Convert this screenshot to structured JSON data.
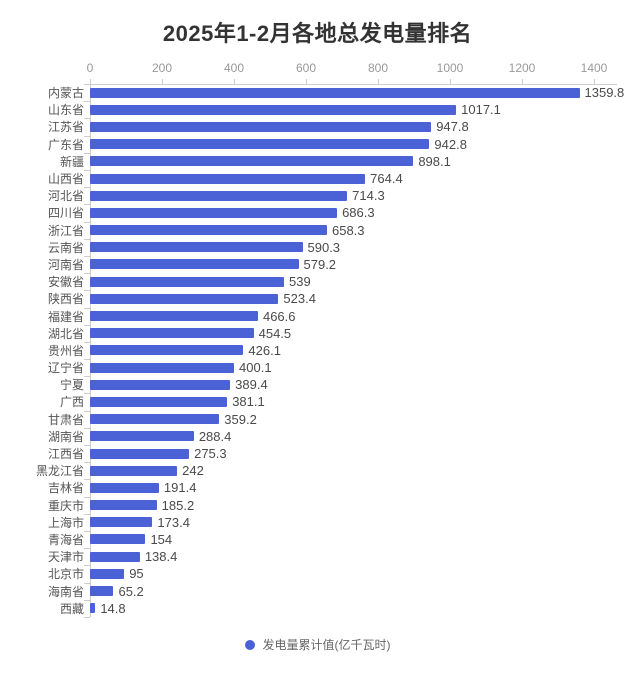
{
  "chart_data": {
    "type": "bar",
    "orientation": "horizontal",
    "title": "2025年1-2月各地总发电量排名",
    "series_name": "发电量累计值(亿千瓦时)",
    "categories": [
      "内蒙古",
      "山东省",
      "江苏省",
      "广东省",
      "新疆",
      "山西省",
      "河北省",
      "四川省",
      "浙江省",
      "云南省",
      "河南省",
      "安徽省",
      "陕西省",
      "福建省",
      "湖北省",
      "贵州省",
      "辽宁省",
      "宁夏",
      "广西",
      "甘肃省",
      "湖南省",
      "江西省",
      "黑龙江省",
      "吉林省",
      "重庆市",
      "上海市",
      "青海省",
      "天津市",
      "北京市",
      "海南省",
      "西藏"
    ],
    "values": [
      1359.8,
      1017.1,
      947.8,
      942.8,
      898.1,
      764.4,
      714.3,
      686.3,
      658.3,
      590.3,
      579.2,
      539,
      523.4,
      466.6,
      454.5,
      426.1,
      400.1,
      389.4,
      381.1,
      359.2,
      288.4,
      275.3,
      242,
      191.4,
      185.2,
      173.4,
      154,
      138.4,
      95,
      65.2,
      14.8
    ],
    "xlim": [
      0,
      1400
    ],
    "x_ticks": [
      0,
      200,
      400,
      600,
      800,
      1000,
      1200,
      1400
    ],
    "grid": false,
    "value_labels": "outside-right",
    "legend_position": "bottom-center",
    "colors": {
      "bar": "#4b61d6",
      "title_text": "#333333",
      "category_text": "#555555",
      "value_text": "#4a4a4a",
      "tick_text": "#999999",
      "axis_line": "#cccccc",
      "background": "#ffffff"
    }
  }
}
